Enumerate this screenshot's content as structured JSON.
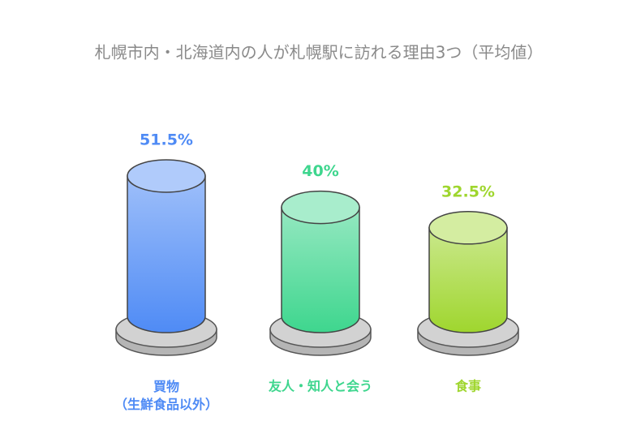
{
  "chart_data": {
    "type": "cylinder-bar",
    "title": "札幌市内・北海道内の人が札幌駅に訪れる理由3つ（平均値）",
    "categories": [
      "買物\n（生鮮食品以外）",
      "友人・知人と会う",
      "食事"
    ],
    "values": [
      51.5,
      40,
      32.5
    ],
    "value_labels": [
      "51.5%",
      "40%",
      "32.5%"
    ],
    "colors": [
      "#4f8bf5",
      "#3ed68e",
      "#9fd62e"
    ]
  }
}
